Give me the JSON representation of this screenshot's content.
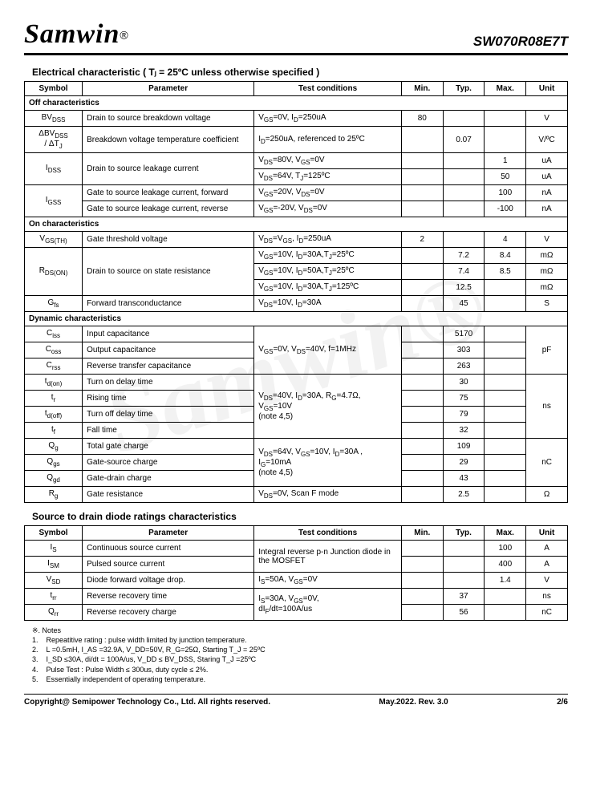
{
  "header": {
    "brand": "Samwin",
    "reg": "®",
    "part": "SW070R08E7T"
  },
  "section1_title": "Electrical characteristic ( Tⱼ = 25ºC unless otherwise specified )",
  "headers": {
    "sym": "Symbol",
    "param": "Parameter",
    "cond": "Test conditions",
    "min": "Min.",
    "typ": "Typ.",
    "max": "Max.",
    "unit": "Unit"
  },
  "groups": {
    "off": "Off characteristics",
    "on": "On characteristics",
    "dyn": "Dynamic characteristics"
  },
  "rows": {
    "bvdss": {
      "sym": "BV",
      "sub": "DSS",
      "param": "Drain to source breakdown voltage",
      "cond": "V_GS=0V, I_D=250uA",
      "min": "80",
      "typ": "",
      "max": "",
      "unit": "V"
    },
    "dbvdss": {
      "sym": "ΔBV",
      "sub": "DSS",
      "sym2": "/ ΔT",
      "sub2": "J",
      "param": "Breakdown voltage temperature coefficient",
      "cond": "I_D=250uA, referenced to 25ºC",
      "min": "",
      "typ": "0.07",
      "max": "",
      "unit": "V/ºC"
    },
    "idss1": {
      "sym": "I",
      "sub": "DSS",
      "param": "Drain to source leakage current",
      "cond": "V_DS=80V, V_GS=0V",
      "min": "",
      "typ": "",
      "max": "1",
      "unit": "uA"
    },
    "idss2": {
      "cond": "V_DS=64V, T_J=125ºC",
      "min": "",
      "typ": "",
      "max": "50",
      "unit": "uA"
    },
    "igss1": {
      "sym": "I",
      "sub": "GSS",
      "param": "Gate to source leakage current, forward",
      "cond": "V_GS=20V, V_DS=0V",
      "min": "",
      "typ": "",
      "max": "100",
      "unit": "nA"
    },
    "igss2": {
      "param": "Gate to source leakage current, reverse",
      "cond": "V_GS=-20V, V_DS=0V",
      "min": "",
      "typ": "",
      "max": "-100",
      "unit": "nA"
    },
    "vgsth": {
      "sym": "V",
      "sub": "GS(TH)",
      "param": "Gate threshold voltage",
      "cond": "V_DS=V_GS, I_D=250uA",
      "min": "2",
      "typ": "",
      "max": "4",
      "unit": "V"
    },
    "rdson1": {
      "sym": "R",
      "sub": "DS(ON)",
      "param": "Drain to source on state resistance",
      "cond": "V_GS=10V, I_D=30A,T_J=25ºC",
      "min": "",
      "typ": "7.2",
      "max": "8.4",
      "unit": "mΩ"
    },
    "rdson2": {
      "cond": "V_GS=10V, I_D=50A,T_J=25ºC",
      "min": "",
      "typ": "7.4",
      "max": "8.5",
      "unit": "mΩ"
    },
    "rdson3": {
      "cond": "V_GS=10V, I_D=30A,T_J=125ºC",
      "min": "",
      "typ": "12.5",
      "max": "",
      "unit": "mΩ"
    },
    "gfs": {
      "sym": "G",
      "sub": "fs",
      "param": "Forward transconductance",
      "cond": "V_DS=10V, I_D=30A",
      "min": "",
      "typ": "45",
      "max": "",
      "unit": "S"
    },
    "ciss": {
      "sym": "C",
      "sub": "iss",
      "param": "Input capacitance",
      "typ": "5170"
    },
    "coss": {
      "sym": "C",
      "sub": "oss",
      "param": "Output capacitance",
      "typ": "303"
    },
    "crss": {
      "sym": "C",
      "sub": "rss",
      "param": "Reverse transfer capacitance",
      "typ": "263"
    },
    "cap_cond": "V_GS=0V, V_DS=40V, f=1MHz",
    "cap_unit": "pF",
    "tdon": {
      "sym": "t",
      "sub": "d(on)",
      "param": "Turn on delay time",
      "typ": "30"
    },
    "tr": {
      "sym": "t",
      "sub": "r",
      "param": "Rising time",
      "typ": "75"
    },
    "tdoff": {
      "sym": "t",
      "sub": "d(off)",
      "param": "Turn off delay time",
      "typ": "79"
    },
    "tf": {
      "sym": "t",
      "sub": "f",
      "param": "Fall time",
      "typ": "32"
    },
    "time_cond": "V_DS=40V, I_D=30A, R_G=4.7Ω, V_GS=10V\n(note 4,5)",
    "time_unit": "ns",
    "qg": {
      "sym": "Q",
      "sub": "g",
      "param": "Total gate charge",
      "typ": "109"
    },
    "qgs": {
      "sym": "Q",
      "sub": "gs",
      "param": "Gate-source charge",
      "typ": "29"
    },
    "qgd": {
      "sym": "Q",
      "sub": "gd",
      "param": "Gate-drain charge",
      "typ": "43"
    },
    "q_cond": "V_DS=64V, V_GS=10V, I_D=30A , I_G=10mA\n(note 4,5)",
    "q_unit": "nC",
    "rg": {
      "sym": "R",
      "sub": "g",
      "param": "Gate resistance",
      "cond": "V_DS=0V, Scan F mode",
      "min": "",
      "typ": "2.5",
      "max": "",
      "unit": "Ω"
    }
  },
  "section2_title": "Source to drain diode ratings characteristics",
  "diode": {
    "is": {
      "sym": "I",
      "sub": "S",
      "param": "Continuous source current",
      "max": "100",
      "unit": "A"
    },
    "ism": {
      "sym": "I",
      "sub": "SM",
      "param": "Pulsed source current",
      "max": "400",
      "unit": "A"
    },
    "diode_cond": "Integral reverse p-n Junction diode in the MOSFET",
    "vsd": {
      "sym": "V",
      "sub": "SD",
      "param": "Diode forward voltage drop.",
      "cond": "I_S=50A, V_GS=0V",
      "max": "1.4",
      "unit": "V"
    },
    "trr": {
      "sym": "t",
      "sub": "rr",
      "param": "Reverse recovery time",
      "typ": "37",
      "unit": "ns"
    },
    "qrr": {
      "sym": "Q",
      "sub": "rr",
      "param": "Reverse recovery charge",
      "typ": "56",
      "unit": "nC"
    },
    "rr_cond": "I_S=30A, V_GS=0V, dI_F/dt=100A/us"
  },
  "notes_title": "※. Notes",
  "notes": [
    "Repeatitive rating : pulse width limited by junction temperature.",
    "L =0.5mH, I_AS =32.9A, V_DD=50V, R_G=25Ω, Starting T_J = 25ºC",
    "I_SD ≤30A, di/dt = 100A/us, V_DD ≤ BV_DSS, Staring T_J =25ºC",
    "Pulse Test : Pulse Width ≤ 300us, duty cycle ≤ 2%.",
    "Essentially independent of operating temperature."
  ],
  "footer": {
    "copy": "Copyright@ Semipower Technology Co., Ltd. All rights reserved.",
    "rev": "May.2022. Rev. 3.0",
    "page": "2/6"
  }
}
